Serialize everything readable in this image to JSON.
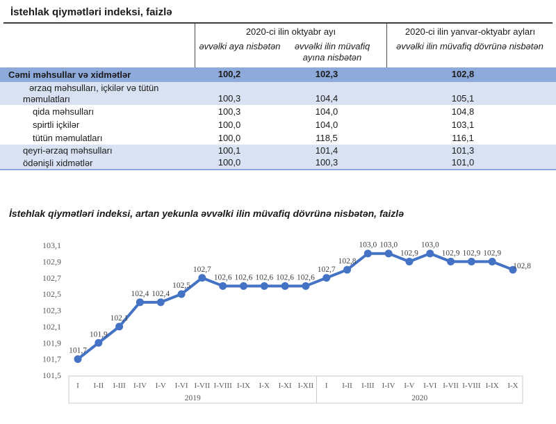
{
  "table": {
    "title": "İstehlak qiymətləri indeksi, faizlə",
    "column_groups": [
      {
        "label": "2020-ci ilin oktyabr ayı"
      },
      {
        "label": "2020-ci ilin yanvar-oktyabr ayları"
      }
    ],
    "sub_headers": [
      "əvvəlki aya nisbətən",
      "əvvəlki ilin müvafiq ayına nisbətən",
      "əvvəlki ilin müvafiq dövrünə nisbətən"
    ],
    "rows": [
      {
        "label": "Cəmi məhsullar və xidmətlər",
        "values": [
          "100,2",
          "102,3",
          "102,8"
        ]
      },
      {
        "label": "ərzaq məhsulları, içkilər və tütün məmulatları",
        "values": [
          "100,3",
          "104,4",
          "105,1"
        ]
      },
      {
        "label": "qida məhsulları",
        "values": [
          "100,3",
          "104,0",
          "104,8"
        ]
      },
      {
        "label": "spirtli içkilər",
        "values": [
          "100,0",
          "104,0",
          "103,1"
        ]
      },
      {
        "label": "tütün məmulatları",
        "values": [
          "100,0",
          "118,5",
          "116,1"
        ]
      },
      {
        "label": "qeyri-ərzaq məhsulları",
        "values": [
          "100,1",
          "101,4",
          "101,3"
        ]
      },
      {
        "label": "ödənişli xidmətlər",
        "values": [
          "100,0",
          "100,3",
          "101,0"
        ]
      }
    ],
    "colors": {
      "header_row_bg": "#8EAADB",
      "band_row_bg": "#D9E2F3",
      "bottom_border": "#8EAADB"
    }
  },
  "chart_data": {
    "type": "line",
    "title": "İstehlak qiymətləri indeksi, artan yekunla əvvəlki ilin müvafiq dövrünə nisbətən, faizlə",
    "x_groups": [
      {
        "label": "2019",
        "categories": [
          "I",
          "I-II",
          "I-III",
          "I-IV",
          "I-V",
          "I-VI",
          "I-VII",
          "I-VIII",
          "I-IX",
          "I-X",
          "I-XI",
          "I-XII"
        ]
      },
      {
        "label": "2020",
        "categories": [
          "I",
          "I-II",
          "I-III",
          "I-IV",
          "I-V",
          "I-VI",
          "I-VII",
          "I-VIII",
          "I-IX",
          "I-X"
        ]
      }
    ],
    "values": [
      101.7,
      101.9,
      102.1,
      102.4,
      102.4,
      102.5,
      102.7,
      102.6,
      102.6,
      102.6,
      102.6,
      102.6,
      102.7,
      102.8,
      103.0,
      103.0,
      102.9,
      103.0,
      102.9,
      102.9,
      102.9,
      102.8
    ],
    "point_labels": [
      "101,7",
      "101,9",
      "102,1",
      "102,4",
      "102,4",
      "102,5",
      "102,7",
      "102,6",
      "102,6",
      "102,6",
      "102,6",
      "102,6",
      "102,7",
      "102,8",
      "103,0",
      "103,0",
      "102,9",
      "103,0",
      "102,9",
      "102,9",
      "102,9",
      "102,8"
    ],
    "label_overrides": {
      "21": [
        13,
        7
      ]
    },
    "yticks": [
      "101,5",
      "101,7",
      "101,9",
      "102,1",
      "102,3",
      "102,5",
      "102,7",
      "102,9",
      "103,1"
    ],
    "ylim": [
      101.5,
      103.1
    ],
    "grid": false,
    "legend": false,
    "line_color": "#4472C4"
  }
}
